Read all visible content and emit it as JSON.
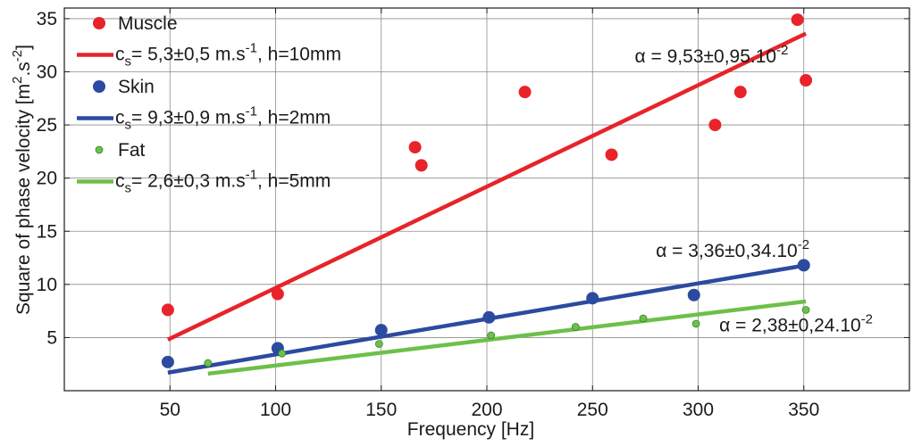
{
  "chart_data": {
    "type": "scatter",
    "xlabel": "Frequency [Hz]",
    "ylabel": "Square of phase velocity [m",
    "ylabel_sup1": "2",
    "ylabel_mid": ".s",
    "ylabel_sup2": "-2",
    "ylabel_end": "]",
    "xlim": [
      0,
      400
    ],
    "ylim": [
      0,
      36
    ],
    "x_ticks": [
      50,
      100,
      150,
      200,
      250,
      300,
      350
    ],
    "y_ticks": [
      5,
      10,
      15,
      20,
      25,
      30,
      35
    ],
    "grid": true,
    "legend_position": "top-left",
    "colors": {
      "muscle": "#e8232a",
      "skin": "#2c4aa0",
      "fat": "#6cc04a"
    },
    "series": [
      {
        "key": "muscle",
        "name": "Muscle",
        "kind": "points",
        "marker": "large",
        "points": [
          [
            49,
            7.6
          ],
          [
            101,
            9.1
          ],
          [
            166,
            22.9
          ],
          [
            169,
            21.2
          ],
          [
            218,
            28.1
          ],
          [
            259,
            22.2
          ],
          [
            308,
            25.0
          ],
          [
            320,
            28.1
          ],
          [
            347,
            34.9
          ],
          [
            351,
            29.2
          ]
        ]
      },
      {
        "key": "skin",
        "name": "Skin",
        "kind": "points",
        "marker": "large",
        "points": [
          [
            49,
            2.7
          ],
          [
            101,
            4.0
          ],
          [
            150,
            5.7
          ],
          [
            201,
            6.9
          ],
          [
            250,
            8.7
          ],
          [
            298,
            9.0
          ],
          [
            350,
            11.8
          ]
        ]
      },
      {
        "key": "fat",
        "name": "Fat",
        "kind": "points",
        "marker": "small",
        "points": [
          [
            68,
            2.6
          ],
          [
            103,
            3.5
          ],
          [
            149,
            4.4
          ],
          [
            202,
            5.2
          ],
          [
            242,
            6.0
          ],
          [
            274,
            6.8
          ],
          [
            299,
            6.3
          ],
          [
            351,
            7.6
          ]
        ]
      }
    ],
    "fits": [
      {
        "key": "muscle",
        "x": [
          49,
          351
        ],
        "y": [
          4.8,
          33.6
        ],
        "label_pre": "c",
        "label_sub": "s",
        "label_mid": "= 5,3±0,5 m.s",
        "label_sup": "-1",
        "label_post": ", h=10mm"
      },
      {
        "key": "skin",
        "x": [
          49,
          351
        ],
        "y": [
          1.7,
          11.8
        ],
        "label_pre": "c",
        "label_sub": "s",
        "label_mid": "= 9,3±0,9 m.s",
        "label_sup": "-1",
        "label_post": ", h=2mm"
      },
      {
        "key": "fat",
        "x": [
          68,
          351
        ],
        "y": [
          1.6,
          8.4
        ],
        "label_pre": "c",
        "label_sub": "s",
        "label_mid": "= 2,6±0,3 m.s",
        "label_sup": "-1",
        "label_post": ", h=5mm"
      }
    ],
    "annotations": [
      {
        "key": "muscle",
        "text": "α = 9,53±0,95.10",
        "sup": "-2",
        "x": 270,
        "y": 30.9
      },
      {
        "key": "skin",
        "text": "α = 3,36±0,34.10",
        "sup": "-2",
        "x": 280,
        "y": 12.6
      },
      {
        "key": "fat",
        "text": "α = 2,38±0,24.10",
        "sup": "-2",
        "x": 310,
        "y": 5.6
      }
    ]
  }
}
